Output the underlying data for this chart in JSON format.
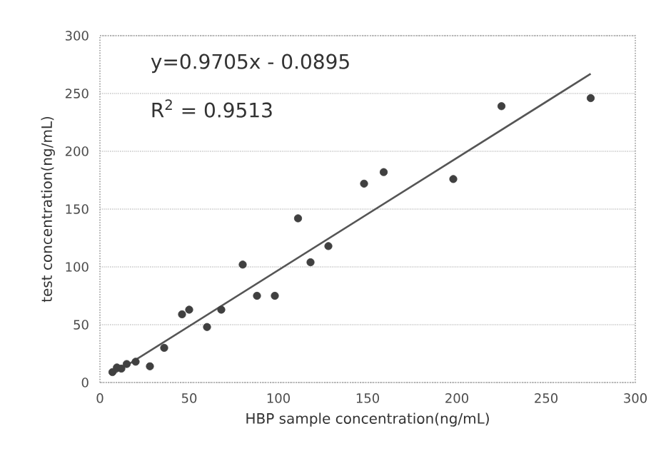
{
  "chart_data": {
    "type": "scatter",
    "xlabel": "HBP sample concentration(ng/mL)",
    "ylabel": "test concentration(ng/mL)",
    "annotations": [
      "y=0.9705x - 0.0895",
      "R$^{2}$ = 0.9513"
    ],
    "xlim": [
      0,
      300
    ],
    "ylim": [
      0,
      300
    ],
    "xticks": [
      0,
      50,
      100,
      150,
      200,
      250,
      300
    ],
    "yticks": [
      {
        "value": 0,
        "label": "0"
      },
      50,
      100,
      150,
      200,
      250,
      300
    ],
    "grid": "y",
    "series": [
      {
        "color": "#404040",
        "marker": "circle",
        "x": [
          7,
          9.5,
          12,
          15,
          20,
          28,
          36,
          46,
          50,
          60,
          68,
          80,
          88,
          98,
          111,
          118,
          128,
          148,
          159,
          198,
          225,
          275
        ],
        "values": [
          9,
          13,
          12,
          16,
          18,
          14,
          30,
          59,
          63,
          48,
          63,
          102,
          75,
          75,
          142,
          104,
          118,
          172,
          182,
          176,
          239,
          246
        ]
      },
      {
        "type": "line",
        "color": "#555555",
        "marker": "none",
        "x": [
          8,
          275
        ],
        "values": [
          8,
          267
        ]
      }
    ]
  }
}
